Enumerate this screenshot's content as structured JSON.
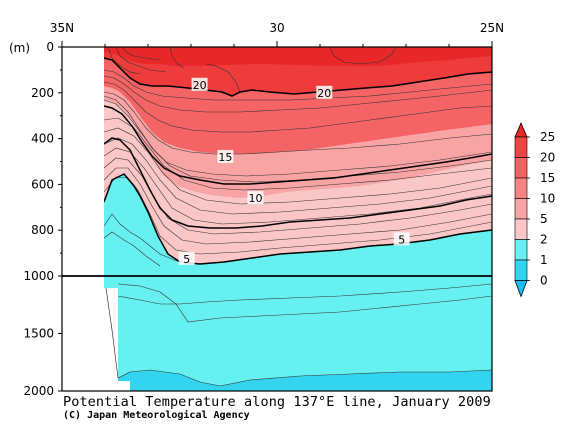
{
  "chart_data": {
    "type": "heatmap",
    "title": "Potential Temperature along 137°E line, January 2009",
    "credit": "(C) Japan Meteorological Agency",
    "x_axis": {
      "ticks": [
        {
          "value": 35,
          "label": "35N"
        },
        {
          "value": 30,
          "label": "30"
        },
        {
          "value": 25,
          "label": "25N"
        }
      ],
      "range": [
        35,
        25
      ]
    },
    "y_axis": {
      "unit": "(m)",
      "upper_panel": {
        "range": [
          0,
          1000
        ],
        "ticks": [
          0,
          200,
          400,
          600,
          800,
          1000
        ]
      },
      "lower_panel": {
        "range": [
          1000,
          2000
        ],
        "ticks": [
          1500,
          2000
        ]
      }
    },
    "colorbar": {
      "levels": [
        0,
        1,
        2,
        5,
        10,
        15,
        20,
        25
      ],
      "labels": [
        "25",
        "20",
        "15",
        "10",
        "5",
        "2",
        "1",
        "0"
      ],
      "colors": [
        "#e82828",
        "#f04444",
        "#f46464",
        "#f68484",
        "#f8a4a4",
        "#fac6c6",
        "#66f0f0",
        "#33d4f0",
        "#19c0f0"
      ]
    },
    "contour_labels": [
      {
        "value": "20",
        "lat": 31.8,
        "depth": 165
      },
      {
        "value": "20",
        "lat": 28.9,
        "depth": 200
      },
      {
        "value": "15",
        "lat": 31.2,
        "depth": 480
      },
      {
        "value": "10",
        "lat": 30.5,
        "depth": 660
      },
      {
        "value": "5",
        "lat": 27.1,
        "depth": 840
      },
      {
        "value": "5",
        "lat": 32.1,
        "depth": 925
      }
    ]
  }
}
